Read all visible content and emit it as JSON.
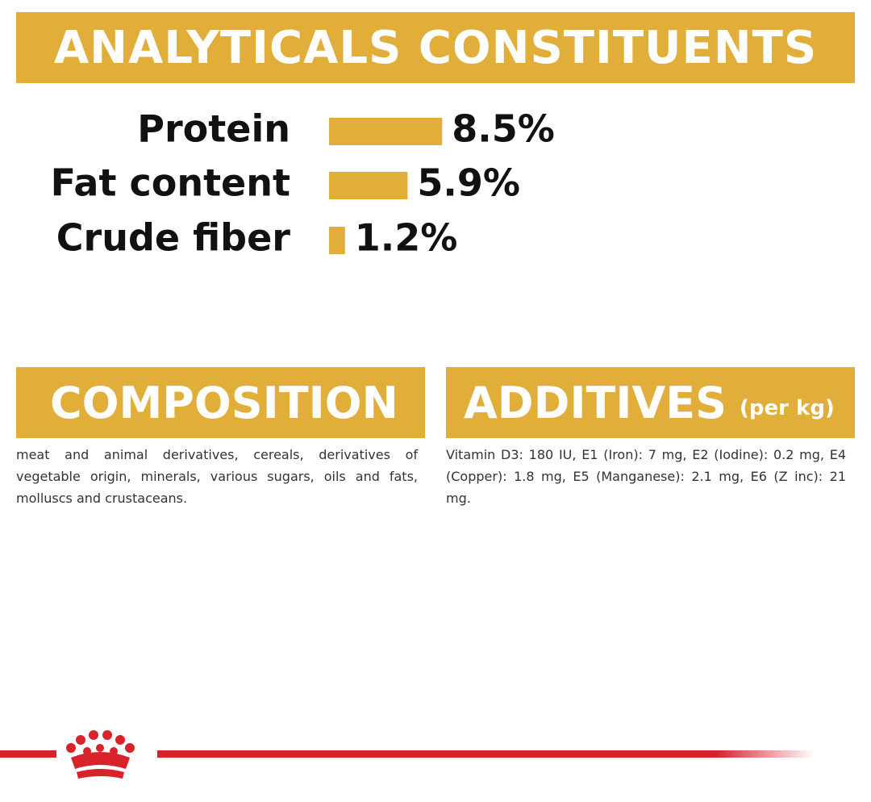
{
  "header": {
    "title": "ANALYTICALS CONSTITUENTS"
  },
  "chart_data": {
    "type": "bar",
    "orientation": "horizontal",
    "categories": [
      "Protein",
      "Fat content",
      "Crude fiber"
    ],
    "values": [
      8.5,
      5.9,
      1.2
    ],
    "value_labels": [
      "8.5%",
      "5.9%",
      "1.2%"
    ],
    "color": "#e2ae3a"
  },
  "composition": {
    "title": "COMPOSITION",
    "text": "meat and animal derivatives, cereals, derivatives of vegetable origin, minerals, various sugars, oils and fats, molluscs and crustaceans."
  },
  "additives": {
    "title": "ADDITIVES",
    "subtitle": "(per kg)",
    "text": "Vitamin D3: 180 IU, E1 (Iron): 7 mg, E2 (Iodine): 0.2 mg, E4 (Copper): 1.8 mg, E5 (Manganese): 2.1 mg, E6 (Z inc): 21 mg."
  }
}
